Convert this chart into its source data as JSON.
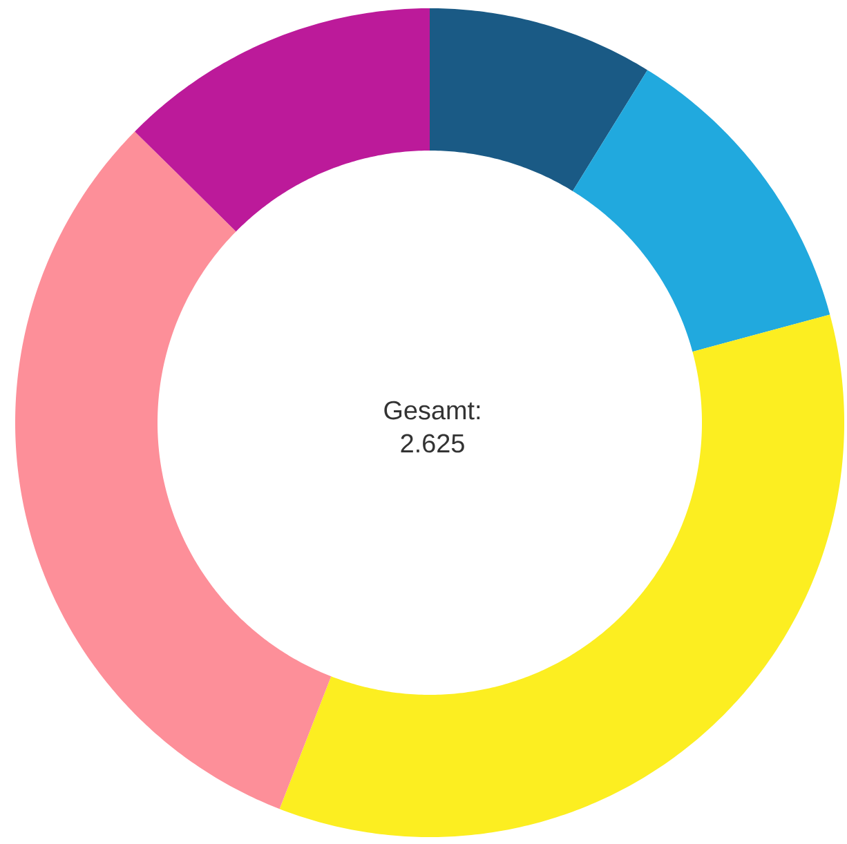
{
  "chart_data": {
    "type": "donut",
    "categories": [
      null,
      null,
      null,
      null,
      null
    ],
    "values": [
      8.8,
      12.0,
      35.1,
      31.5,
      12.6
    ],
    "colors": [
      "#1a5a85",
      "#21a9de",
      "#fcee21",
      "#fd8f99",
      "#bc1a9a"
    ],
    "annotations": [
      "Gesamt:",
      "2.625"
    ]
  }
}
